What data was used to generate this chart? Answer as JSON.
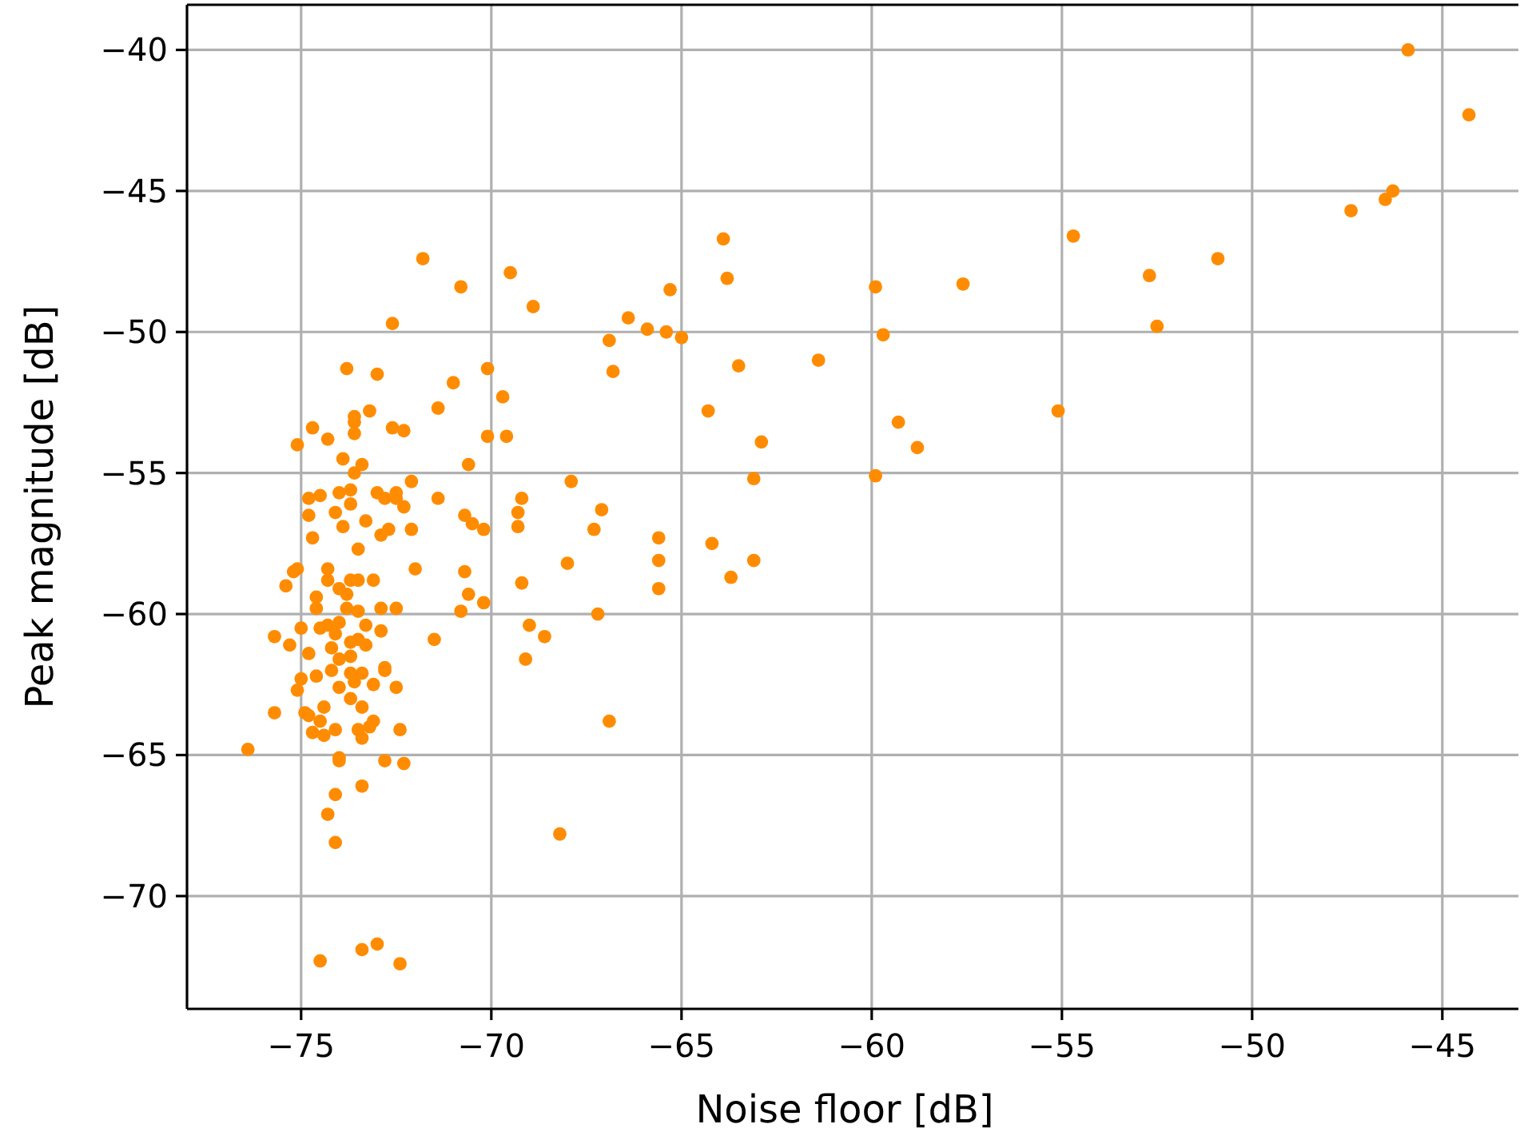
{
  "chart_data": {
    "type": "scatter",
    "xlabel": "Noise floor [dB]",
    "ylabel": "Peak magnitude [dB]",
    "xlim": [
      -78,
      -43
    ],
    "ylim": [
      -74,
      -38.4
    ],
    "xticks": [
      {
        "value": -75,
        "label": "−75"
      },
      {
        "value": -70,
        "label": "−70"
      },
      {
        "value": -65,
        "label": "−65"
      },
      {
        "value": -60,
        "label": "−60"
      },
      {
        "value": -55,
        "label": "−55"
      },
      {
        "value": -50,
        "label": "−50"
      },
      {
        "value": -45,
        "label": "−45"
      }
    ],
    "yticks": [
      {
        "value": -70,
        "label": "−70"
      },
      {
        "value": -65,
        "label": "−65"
      },
      {
        "value": -60,
        "label": "−60"
      },
      {
        "value": -55,
        "label": "−55"
      },
      {
        "value": -50,
        "label": "−50"
      },
      {
        "value": -45,
        "label": "−45"
      },
      {
        "value": -40,
        "label": "−40"
      }
    ],
    "grid": true,
    "marker": "circle",
    "series": [
      {
        "color": "#ff8c00",
        "x": [
          -45.9,
          -44.3,
          -46.3,
          -46.5,
          -47.4,
          -54.7,
          -50.9,
          -52.7,
          -52.5,
          -57.6,
          -55.1,
          -59.9,
          -59.7,
          -59.9,
          -59.3,
          -58.8,
          -63.9,
          -63.8,
          -69.5,
          -68.9,
          -65.3,
          -66.4,
          -65.9,
          -65.4,
          -65.0,
          -66.9,
          -66.8,
          -63.5,
          -61.4,
          -64.3,
          -62.9,
          -63.1,
          -70.1,
          -69.7,
          -70.1,
          -69.6,
          -67.9,
          -69.2,
          -69.3,
          -69.3,
          -67.1,
          -67.3,
          -70.2,
          -65.6,
          -65.6,
          -65.6,
          -64.2,
          -63.1,
          -63.7,
          -68.0,
          -69.2,
          -70.2,
          -67.2,
          -69.0,
          -68.6,
          -69.1,
          -66.9,
          -68.2,
          -71.8,
          -70.8,
          -72.6,
          -73.8,
          -73.0,
          -71.0,
          -71.4,
          -73.2,
          -73.6,
          -73.6,
          -73.6,
          -74.7,
          -74.3,
          -72.6,
          -72.3,
          -75.1,
          -73.9,
          -73.4,
          -70.6,
          -73.6,
          -72.1,
          -71.4,
          -74.8,
          -74.5,
          -74.0,
          -73.7,
          -73.0,
          -72.8,
          -72.5,
          -72.5,
          -72.3,
          -74.1,
          -73.7,
          -74.8,
          -73.3,
          -73.9,
          -74.7,
          -73.5,
          -72.9,
          -72.7,
          -72.1,
          -70.7,
          -70.5,
          -72.0,
          -70.7,
          -70.6,
          -70.8,
          -75.2,
          -75.1,
          -75.4,
          -74.3,
          -74.3,
          -74.6,
          -74.6,
          -74.0,
          -73.8,
          -73.7,
          -73.5,
          -73.1,
          -73.8,
          -73.5,
          -72.9,
          -72.5,
          -75.0,
          -75.7,
          -75.3,
          -74.8,
          -74.5,
          -74.3,
          -74.0,
          -74.1,
          -73.3,
          -72.9,
          -71.5,
          -74.2,
          -74.0,
          -73.7,
          -73.5,
          -73.3,
          -73.7,
          -74.2,
          -75.0,
          -74.6,
          -75.1,
          -74.0,
          -73.7,
          -73.7,
          -73.4,
          -73.6,
          -73.1,
          -73.4,
          -72.8,
          -72.8,
          -72.5,
          -75.7,
          -74.9,
          -74.8,
          -74.4,
          -74.5,
          -74.7,
          -74.4,
          -74.1,
          -73.5,
          -73.4,
          -73.2,
          -73.1,
          -72.4,
          -76.4,
          -74.0,
          -74.0,
          -72.8,
          -72.3,
          -74.1,
          -73.4,
          -74.3,
          -74.1,
          -74.5,
          -73.4,
          -73.0,
          -72.4
        ],
        "values": [
          -40.0,
          -42.3,
          -45.0,
          -45.3,
          -45.7,
          -46.6,
          -47.4,
          -48.0,
          -49.8,
          -48.3,
          -52.8,
          -48.4,
          -50.1,
          -55.1,
          -53.2,
          -54.1,
          -46.7,
          -48.1,
          -47.9,
          -49.1,
          -48.5,
          -49.5,
          -49.9,
          -50.0,
          -50.2,
          -50.3,
          -51.4,
          -51.2,
          -51.0,
          -52.8,
          -53.9,
          -55.2,
          -51.3,
          -52.3,
          -53.7,
          -53.7,
          -55.3,
          -55.9,
          -56.4,
          -56.9,
          -56.3,
          -57.0,
          -57.0,
          -57.3,
          -58.1,
          -59.1,
          -57.5,
          -58.1,
          -58.7,
          -58.2,
          -58.9,
          -59.6,
          -60.0,
          -60.4,
          -60.8,
          -61.6,
          -63.8,
          -67.8,
          -47.4,
          -48.4,
          -49.7,
          -51.3,
          -51.5,
          -51.8,
          -52.7,
          -52.8,
          -53.0,
          -53.2,
          -53.6,
          -53.4,
          -53.8,
          -53.4,
          -53.5,
          -54.0,
          -54.5,
          -54.7,
          -54.7,
          -55.0,
          -55.3,
          -55.9,
          -55.9,
          -55.8,
          -55.7,
          -55.6,
          -55.7,
          -55.9,
          -55.7,
          -55.9,
          -56.2,
          -56.4,
          -56.1,
          -56.5,
          -56.7,
          -56.9,
          -57.3,
          -57.7,
          -57.2,
          -57.0,
          -57.0,
          -56.5,
          -56.8,
          -58.4,
          -58.5,
          -59.3,
          -59.9,
          -58.5,
          -58.4,
          -59.0,
          -58.4,
          -58.8,
          -59.4,
          -59.8,
          -59.1,
          -59.3,
          -58.8,
          -58.8,
          -58.8,
          -59.8,
          -59.9,
          -59.8,
          -59.8,
          -60.5,
          -60.8,
          -61.1,
          -61.4,
          -60.5,
          -60.4,
          -60.3,
          -60.7,
          -60.4,
          -60.6,
          -60.9,
          -61.2,
          -61.6,
          -61.0,
          -60.9,
          -61.1,
          -61.5,
          -62.0,
          -62.3,
          -62.2,
          -62.7,
          -62.6,
          -63.0,
          -62.1,
          -62.1,
          -62.4,
          -62.5,
          -63.3,
          -62.0,
          -61.9,
          -62.6,
          -63.5,
          -63.5,
          -63.6,
          -63.3,
          -63.8,
          -64.2,
          -64.3,
          -64.1,
          -64.1,
          -64.4,
          -64.0,
          -63.8,
          -64.1,
          -64.8,
          -65.1,
          -65.2,
          -65.2,
          -65.3,
          -66.4,
          -66.1,
          -67.1,
          -68.1,
          -72.3,
          -71.9,
          -71.7,
          -72.4
        ]
      }
    ]
  }
}
